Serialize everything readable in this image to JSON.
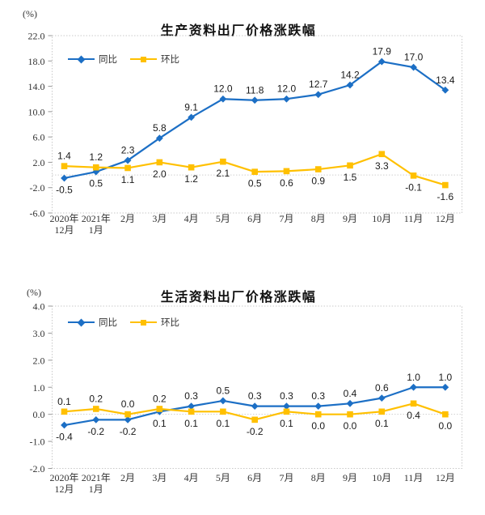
{
  "page": {
    "background": "#ffffff"
  },
  "colors": {
    "yoy_blue": "#1C6FC5",
    "mom_yellow": "#FFC000",
    "axis_text": "#333333",
    "data_label_text": "#1a1a1a",
    "plot_border": "#c9c9c9",
    "zero_gridline": "#cfcfcf"
  },
  "chart_data": [
    {
      "type": "line",
      "title": "生产资料出厂价格涨跌幅",
      "ylabel": "(%)",
      "xlabel": "",
      "categories": [
        "2020年\n12月",
        "2021年\n1月",
        "2月",
        "3月",
        "4月",
        "5月",
        "6月",
        "7月",
        "8月",
        "9月",
        "10月",
        "11月",
        "12月"
      ],
      "series": [
        {
          "name": "同比",
          "color": "#1C6FC5",
          "marker": "diamond",
          "values": [
            -0.5,
            0.5,
            2.3,
            5.8,
            9.1,
            12.0,
            11.8,
            12.0,
            12.7,
            14.2,
            17.9,
            17.0,
            13.4
          ]
        },
        {
          "name": "环比",
          "color": "#FFC000",
          "marker": "square",
          "values": [
            1.4,
            1.2,
            1.1,
            2.0,
            1.2,
            2.1,
            0.5,
            0.6,
            0.9,
            1.5,
            3.3,
            -0.1,
            -1.6
          ]
        }
      ],
      "ylim": [
        -6.0,
        22.0
      ],
      "ytick_labels": [
        "22.0",
        "18.0",
        "14.0",
        "10.0",
        "6.0",
        "2.0",
        "-2.0",
        "-6.0"
      ],
      "grid": "horizontal-dotted-line-at-zero-only",
      "legend_position": "top-left-inside",
      "data_labels": "every-point-one-decimal"
    },
    {
      "type": "line",
      "title": "生活资料出厂价格涨跌幅",
      "ylabel": "(%)",
      "xlabel": "",
      "categories": [
        "2020年\n12月",
        "2021年\n1月",
        "2月",
        "3月",
        "4月",
        "5月",
        "6月",
        "7月",
        "8月",
        "9月",
        "10月",
        "11月",
        "12月"
      ],
      "series": [
        {
          "name": "同比",
          "color": "#1C6FC5",
          "marker": "diamond",
          "values": [
            -0.4,
            -0.2,
            -0.2,
            0.1,
            0.3,
            0.5,
            0.3,
            0.3,
            0.3,
            0.4,
            0.6,
            1.0,
            1.0
          ]
        },
        {
          "name": "环比",
          "color": "#FFC000",
          "marker": "square",
          "values": [
            0.1,
            0.2,
            0.0,
            0.2,
            0.1,
            0.1,
            -0.2,
            0.1,
            0.0,
            0.0,
            0.1,
            0.4,
            0.0
          ]
        }
      ],
      "ylim": [
        -2.0,
        4.0
      ],
      "ytick_labels": [
        "4.0",
        "3.0",
        "2.0",
        "1.0",
        "0.0",
        "-1.0",
        "-2.0"
      ],
      "grid": "horizontal-dotted-line-at-zero-only",
      "legend_position": "top-left-inside",
      "data_labels": "every-point-one-decimal"
    }
  ]
}
